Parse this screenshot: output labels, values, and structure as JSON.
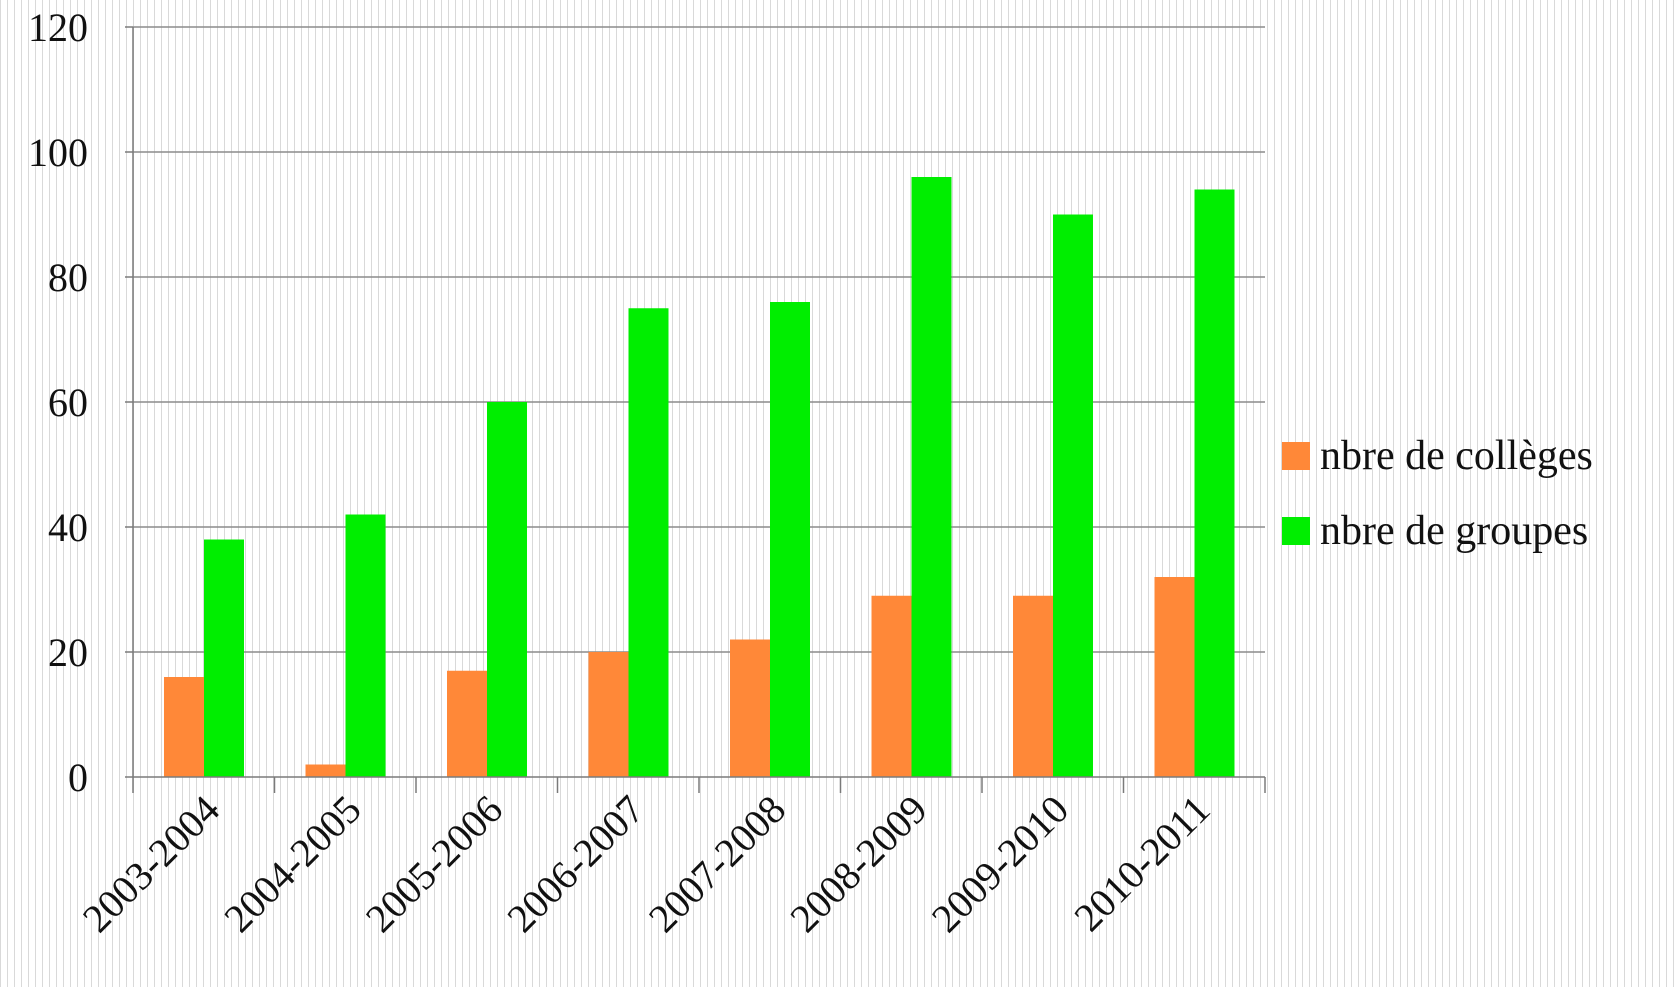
{
  "chart_data": {
    "type": "bar",
    "title": "",
    "xlabel": "",
    "ylabel": "",
    "categories": [
      "2003-2004",
      "2004-2005",
      "2005-2006",
      "2006-2007",
      "2007-2008",
      "2008-2009",
      "2009-2010",
      "2010-2011"
    ],
    "series": [
      {
        "name": "nbre de collèges",
        "color": "#ff8838",
        "values": [
          16,
          2,
          17,
          20,
          22,
          29,
          29,
          32
        ]
      },
      {
        "name": "nbre de groupes",
        "color": "#00ee00",
        "values": [
          38,
          42,
          60,
          75,
          76,
          96,
          90,
          94
        ]
      }
    ],
    "ylim": [
      0,
      120
    ],
    "yticks": [
      "0",
      "20",
      "40",
      "60",
      "80",
      "100",
      "120"
    ],
    "grid": true,
    "legend_position": "right"
  }
}
